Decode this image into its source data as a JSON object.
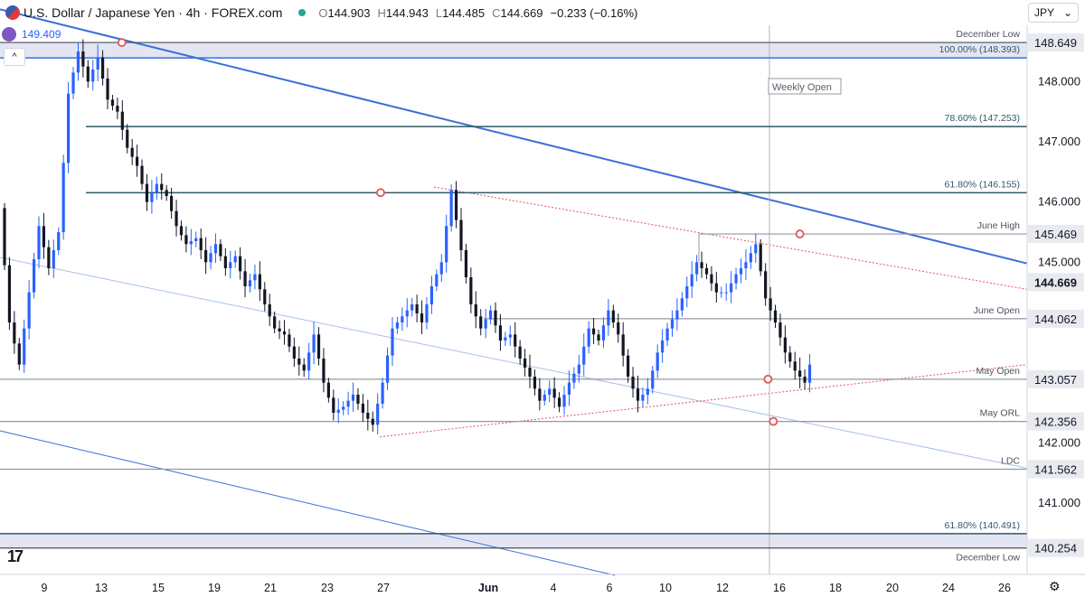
{
  "header": {
    "title": "U.S. Dollar / Japanese Yen · 4h · FOREX.com",
    "o_label": "O",
    "o": "144.903",
    "h_label": "H",
    "h": "144.943",
    "l_label": "L",
    "l": "144.485",
    "c_label": "C",
    "c": "144.669",
    "change": "−0.233 (−0.16%)",
    "prev_value": "149.409"
  },
  "currency": {
    "label": "JPY",
    "chevron": "⌄"
  },
  "colors": {
    "up": "#2962ff",
    "down": "#131722",
    "trend": "#3a6fd8",
    "channel": "#a7c0e8",
    "level": "#2f5a67",
    "gray_level": "#9598a1",
    "dotted": "#e0565b",
    "zone": "#e3e6f2"
  },
  "chart_data": {
    "type": "candlestick",
    "ylim": [
      139.8,
      148.95
    ],
    "x_ticks": [
      "9",
      "13",
      "15",
      "19",
      "21",
      "23",
      "27",
      "Jun",
      "4",
      "6",
      "10",
      "12",
      "16",
      "18",
      "20",
      "24",
      "26"
    ],
    "price_ticks": [
      "148.000",
      "147.000",
      "146.000",
      "145.000",
      "142.000",
      "141.000"
    ],
    "levels": [
      {
        "price": 148.649,
        "label": "December Low",
        "tag": "148.649",
        "style": "dark"
      },
      {
        "price": 148.393,
        "label": "100.00% (148.393)",
        "tag": "",
        "style": "blue"
      },
      {
        "price": 147.253,
        "label": "78.60% (147.253)",
        "tag": "",
        "style": "teal"
      },
      {
        "price": 146.155,
        "label": "61.80% (146.155)",
        "tag": "",
        "style": "teal"
      },
      {
        "price": 145.469,
        "label": "June High",
        "tag": "145.469",
        "style": "gray"
      },
      {
        "price": 144.062,
        "label": "June Open",
        "tag": "144.062",
        "style": "gray"
      },
      {
        "price": 143.057,
        "label": "May Open",
        "tag": "143.057",
        "style": "gray"
      },
      {
        "price": 142.356,
        "label": "May ORL",
        "tag": "142.356",
        "style": "gray"
      },
      {
        "price": 141.562,
        "label": "LDC",
        "tag": "141.562",
        "style": "gray"
      },
      {
        "price": 140.491,
        "label": "61.80% (140.491)",
        "tag": "",
        "style": "teal"
      },
      {
        "price": 140.254,
        "label": "December Low",
        "tag": "140.254",
        "style": "dark"
      }
    ],
    "current_price": 144.669,
    "weekly_open_label": "Weekly Open",
    "path": [
      145.9,
      144.0,
      143.3,
      144.5,
      145.6,
      144.9,
      145.5,
      147.8,
      148.5,
      148.0,
      148.4,
      147.7,
      147.5,
      146.9,
      146.6,
      146.0,
      146.3,
      146.1,
      145.6,
      145.3,
      145.4,
      145.0,
      145.3,
      144.9,
      145.1,
      144.6,
      144.8,
      144.3,
      143.9,
      143.8,
      143.4,
      143.2,
      143.8,
      143.0,
      142.5,
      142.6,
      142.8,
      142.5,
      142.3,
      143.0,
      143.9,
      144.1,
      144.3,
      144.0,
      144.6,
      145.0,
      146.2,
      145.2,
      144.3,
      143.9,
      144.2,
      143.7,
      143.8,
      143.4,
      143.1,
      142.7,
      142.9,
      142.6,
      143.0,
      143.3,
      143.9,
      143.7,
      144.2,
      143.8,
      143.1,
      142.7,
      142.9,
      143.5,
      143.9,
      144.2,
      144.6,
      145.0,
      144.8,
      144.5,
      144.5,
      144.8,
      145.0,
      145.3,
      144.4,
      144.0,
      143.5,
      143.2,
      143.0,
      143.6,
      144.1,
      144.0,
      144.2,
      145.1,
      144.9,
      144.67
    ],
    "markers": [
      {
        "bar": 23.9,
        "price": 148.649
      },
      {
        "bar": 76.6,
        "price": 146.155
      },
      {
        "bar": 162.0,
        "price": 145.469
      },
      {
        "bar": 155.5,
        "price": 143.057
      },
      {
        "bar": 156.6,
        "price": 142.356
      }
    ]
  }
}
